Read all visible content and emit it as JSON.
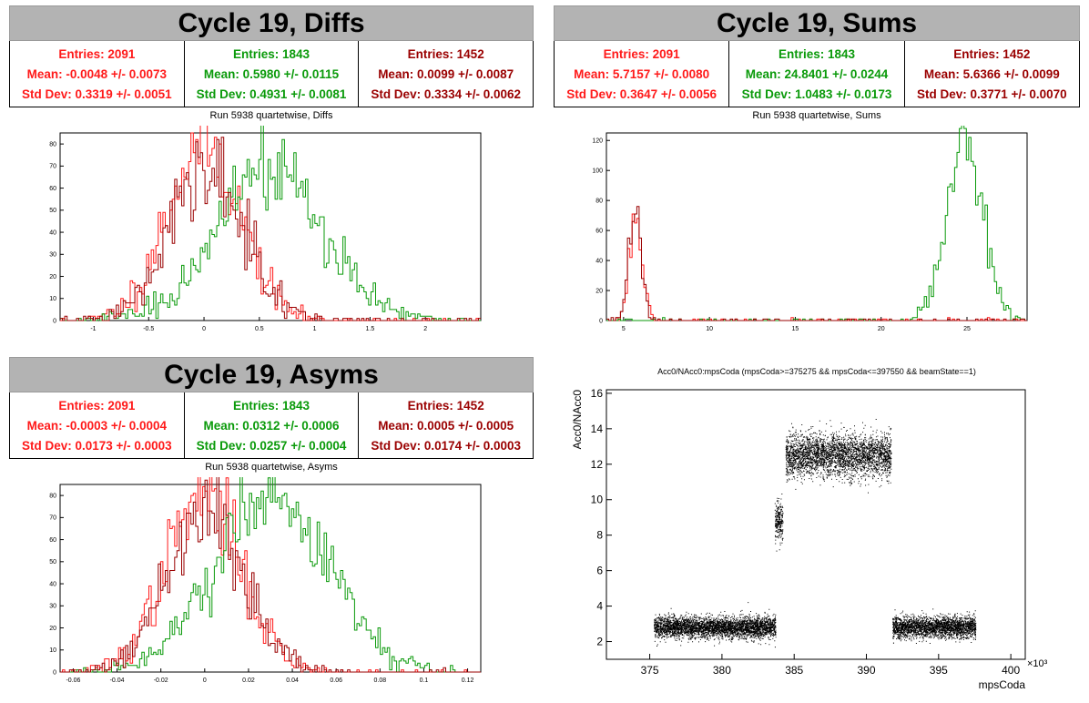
{
  "panels": {
    "diffs": {
      "title": "Cycle 19, Diffs",
      "subtitle": "Run 5938 quartetwise, Diffs",
      "stats": [
        {
          "entries": "Entries: 2091",
          "mean": "Mean: -0.0048 +/- 0.0073",
          "std": "Std Dev: 0.3319 +/- 0.0051"
        },
        {
          "entries": "Entries: 1843",
          "mean": "Mean: 0.5980 +/- 0.0115",
          "std": "Std Dev: 0.4931 +/- 0.0081"
        },
        {
          "entries": "Entries: 1452",
          "mean": "Mean: 0.0099 +/- 0.0087",
          "std": "Std Dev: 0.3334 +/- 0.0062"
        }
      ]
    },
    "sums": {
      "title": "Cycle 19, Sums",
      "subtitle": "Run 5938 quartetwise, Sums",
      "stats": [
        {
          "entries": "Entries: 2091",
          "mean": "Mean: 5.7157 +/- 0.0080",
          "std": "Std Dev: 0.3647 +/- 0.0056"
        },
        {
          "entries": "Entries: 1843",
          "mean": "Mean: 24.8401 +/- 0.0244",
          "std": "Std Dev: 1.0483 +/- 0.0173"
        },
        {
          "entries": "Entries: 1452",
          "mean": "Mean: 5.6366 +/- 0.0099",
          "std": "Std Dev: 0.3771 +/- 0.0070"
        }
      ]
    },
    "asyms": {
      "title": "Cycle 19, Asyms",
      "subtitle": "Run 5938 quartetwise, Asyms",
      "stats": [
        {
          "entries": "Entries: 2091",
          "mean": "Mean: -0.0003 +/- 0.0004",
          "std": "Std Dev: 0.0173 +/- 0.0003"
        },
        {
          "entries": "Entries: 1843",
          "mean": "Mean: 0.0312 +/- 0.0006",
          "std": "Std Dev: 0.0257 +/- 0.0004"
        },
        {
          "entries": "Entries: 1452",
          "mean": "Mean: 0.0005 +/- 0.0005",
          "std": "Std Dev: 0.0174 +/- 0.0003"
        }
      ]
    },
    "scatter": {
      "title": "Acc0/NAcc0:mpsCoda (mpsCoda>=375275 && mpsCoda<=397550 && beamState==1)",
      "xlabel": "mpsCoda",
      "ylabel": "Acc0/NAcc0",
      "exponent": "×10³"
    }
  },
  "colors": {
    "red": "#ff1a1a",
    "green": "#0a9a0a",
    "dark": "#9a0000"
  },
  "chart_data": [
    {
      "type": "histogram",
      "name": "diffs",
      "xlim": [
        -1.3,
        2.5
      ],
      "ylim": [
        0,
        85
      ],
      "xticks": [
        -1,
        -0.5,
        0,
        0.5,
        1,
        1.5,
        2
      ],
      "xticklabels": [
        "-1",
        "-0.5",
        "0",
        "0.5",
        "1",
        "1.5",
        "2"
      ],
      "yticks": [
        0,
        10,
        20,
        30,
        40,
        50,
        60,
        70,
        80
      ],
      "series": [
        {
          "color": "#ff1a1a",
          "mean": -0.0048,
          "std": 0.3319,
          "peak": 80
        },
        {
          "color": "#0a9a0a",
          "mean": 0.598,
          "std": 0.4931,
          "peak": 68
        },
        {
          "color": "#9a0000",
          "mean": 0.0099,
          "std": 0.3334,
          "peak": 70
        }
      ]
    },
    {
      "type": "histogram",
      "name": "sums",
      "xlim": [
        4,
        28.5
      ],
      "ylim": [
        0,
        125
      ],
      "xticks": [
        5,
        10,
        15,
        20,
        25
      ],
      "xticklabels": [
        "5",
        "10",
        "15",
        "20",
        "25"
      ],
      "yticks": [
        0,
        20,
        40,
        60,
        80,
        100,
        120
      ],
      "series": [
        {
          "color": "#ff1a1a",
          "mean": 5.7157,
          "std": 0.3647,
          "peak": 72
        },
        {
          "color": "#0a9a0a",
          "mean": 24.8401,
          "std": 1.0483,
          "peak": 118
        },
        {
          "color": "#9a0000",
          "mean": 5.6366,
          "std": 0.3771,
          "peak": 65
        }
      ]
    },
    {
      "type": "histogram",
      "name": "asyms",
      "xlim": [
        -0.066,
        0.126
      ],
      "ylim": [
        0,
        85
      ],
      "xticks": [
        -0.06,
        -0.04,
        -0.02,
        0,
        0.02,
        0.04,
        0.06,
        0.08,
        0.1,
        0.12
      ],
      "xticklabels": [
        "-0.06",
        "-0.04",
        "-0.02",
        "0",
        "0.02",
        "0.04",
        "0.06",
        "0.08",
        "0.1",
        "0.12"
      ],
      "yticks": [
        0,
        10,
        20,
        30,
        40,
        50,
        60,
        70,
        80
      ],
      "series": [
        {
          "color": "#ff1a1a",
          "mean": -0.0003,
          "std": 0.0173,
          "peak": 80
        },
        {
          "color": "#0a9a0a",
          "mean": 0.0312,
          "std": 0.0257,
          "peak": 78
        },
        {
          "color": "#9a0000",
          "mean": 0.0005,
          "std": 0.0174,
          "peak": 72
        }
      ]
    },
    {
      "type": "scatter",
      "name": "scatter",
      "xlim": [
        372000,
        401000
      ],
      "ylim": [
        1,
        16.2
      ],
      "xticks": [
        375000,
        380000,
        385000,
        390000,
        395000,
        400000
      ],
      "xticklabels": [
        "375",
        "380",
        "385",
        "390",
        "395",
        "400"
      ],
      "yticks": [
        2,
        4,
        6,
        8,
        10,
        12,
        14,
        16
      ],
      "yticklabels": [
        "2",
        "4",
        "6",
        "8",
        "10",
        "12",
        "14",
        "16"
      ],
      "clusters": [
        {
          "x": [
            375275,
            383700
          ],
          "ymean": 2.8,
          "ystd": 0.3
        },
        {
          "x": [
            383650,
            384200
          ],
          "ymean": 8.8,
          "ystd": 0.55
        },
        {
          "x": [
            384400,
            391700
          ],
          "ymean": 12.5,
          "ystd": 0.6
        },
        {
          "x": [
            391800,
            397550
          ],
          "ymean": 2.8,
          "ystd": 0.3
        }
      ]
    }
  ]
}
